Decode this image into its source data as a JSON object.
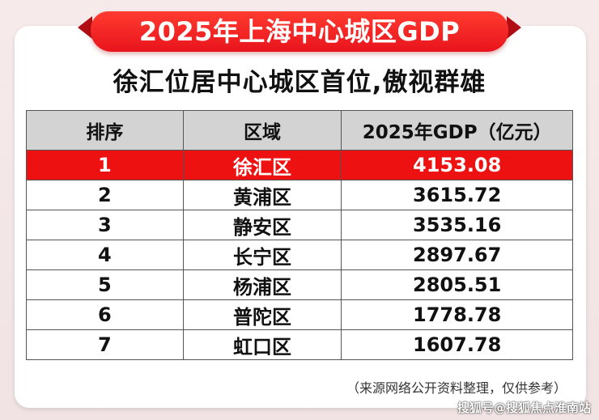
{
  "chart_data": {
    "type": "table",
    "title": "2025年上海中心城区GDP",
    "subtitle": "徐汇位居中心城区首位,傲视群雄",
    "columns": [
      "排序",
      "区域",
      "2025年GDP（亿元）"
    ],
    "rows": [
      {
        "rank": "1",
        "district": "徐汇区",
        "gdp": "4153.08",
        "highlight": true
      },
      {
        "rank": "2",
        "district": "黄浦区",
        "gdp": "3615.72",
        "highlight": false
      },
      {
        "rank": "3",
        "district": "静安区",
        "gdp": "3535.16",
        "highlight": false
      },
      {
        "rank": "4",
        "district": "长宁区",
        "gdp": "2897.67",
        "highlight": false
      },
      {
        "rank": "5",
        "district": "杨浦区",
        "gdp": "2805.51",
        "highlight": false
      },
      {
        "rank": "6",
        "district": "普陀区",
        "gdp": "1778.78",
        "highlight": false
      },
      {
        "rank": "7",
        "district": "虹口区",
        "gdp": "1607.78",
        "highlight": false
      }
    ],
    "source_note": "（来源网络公开资料整理，仅供参考）"
  },
  "watermark": "搜狐号@搜狐焦点淮南站",
  "colors": {
    "banner": "#e8141c",
    "highlight_row": "#ee1111",
    "header_row": "#d3d3d3"
  }
}
